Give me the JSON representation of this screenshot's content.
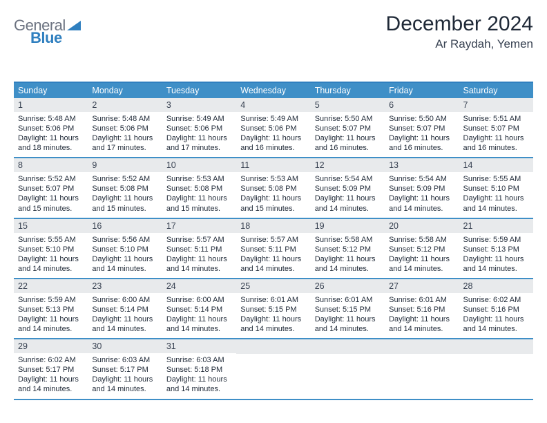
{
  "brand": {
    "part1": "General",
    "part2": "Blue"
  },
  "title": "December 2024",
  "location": "Ar Raydah, Yemen",
  "colors": {
    "header_bg": "#3f8fc7",
    "header_border": "#2f7fbf",
    "daynum_bg": "#e8eaec",
    "text": "#1f2937",
    "logo_gray": "#6b7280",
    "logo_blue": "#2f7fbf"
  },
  "daysOfWeek": [
    "Sunday",
    "Monday",
    "Tuesday",
    "Wednesday",
    "Thursday",
    "Friday",
    "Saturday"
  ],
  "weeks": [
    [
      {
        "n": "1",
        "sr": "5:48 AM",
        "ss": "5:06 PM",
        "dl": "11 hours and 18 minutes."
      },
      {
        "n": "2",
        "sr": "5:48 AM",
        "ss": "5:06 PM",
        "dl": "11 hours and 17 minutes."
      },
      {
        "n": "3",
        "sr": "5:49 AM",
        "ss": "5:06 PM",
        "dl": "11 hours and 17 minutes."
      },
      {
        "n": "4",
        "sr": "5:49 AM",
        "ss": "5:06 PM",
        "dl": "11 hours and 16 minutes."
      },
      {
        "n": "5",
        "sr": "5:50 AM",
        "ss": "5:07 PM",
        "dl": "11 hours and 16 minutes."
      },
      {
        "n": "6",
        "sr": "5:50 AM",
        "ss": "5:07 PM",
        "dl": "11 hours and 16 minutes."
      },
      {
        "n": "7",
        "sr": "5:51 AM",
        "ss": "5:07 PM",
        "dl": "11 hours and 16 minutes."
      }
    ],
    [
      {
        "n": "8",
        "sr": "5:52 AM",
        "ss": "5:07 PM",
        "dl": "11 hours and 15 minutes."
      },
      {
        "n": "9",
        "sr": "5:52 AM",
        "ss": "5:08 PM",
        "dl": "11 hours and 15 minutes."
      },
      {
        "n": "10",
        "sr": "5:53 AM",
        "ss": "5:08 PM",
        "dl": "11 hours and 15 minutes."
      },
      {
        "n": "11",
        "sr": "5:53 AM",
        "ss": "5:08 PM",
        "dl": "11 hours and 15 minutes."
      },
      {
        "n": "12",
        "sr": "5:54 AM",
        "ss": "5:09 PM",
        "dl": "11 hours and 14 minutes."
      },
      {
        "n": "13",
        "sr": "5:54 AM",
        "ss": "5:09 PM",
        "dl": "11 hours and 14 minutes."
      },
      {
        "n": "14",
        "sr": "5:55 AM",
        "ss": "5:10 PM",
        "dl": "11 hours and 14 minutes."
      }
    ],
    [
      {
        "n": "15",
        "sr": "5:55 AM",
        "ss": "5:10 PM",
        "dl": "11 hours and 14 minutes."
      },
      {
        "n": "16",
        "sr": "5:56 AM",
        "ss": "5:10 PM",
        "dl": "11 hours and 14 minutes."
      },
      {
        "n": "17",
        "sr": "5:57 AM",
        "ss": "5:11 PM",
        "dl": "11 hours and 14 minutes."
      },
      {
        "n": "18",
        "sr": "5:57 AM",
        "ss": "5:11 PM",
        "dl": "11 hours and 14 minutes."
      },
      {
        "n": "19",
        "sr": "5:58 AM",
        "ss": "5:12 PM",
        "dl": "11 hours and 14 minutes."
      },
      {
        "n": "20",
        "sr": "5:58 AM",
        "ss": "5:12 PM",
        "dl": "11 hours and 14 minutes."
      },
      {
        "n": "21",
        "sr": "5:59 AM",
        "ss": "5:13 PM",
        "dl": "11 hours and 14 minutes."
      }
    ],
    [
      {
        "n": "22",
        "sr": "5:59 AM",
        "ss": "5:13 PM",
        "dl": "11 hours and 14 minutes."
      },
      {
        "n": "23",
        "sr": "6:00 AM",
        "ss": "5:14 PM",
        "dl": "11 hours and 14 minutes."
      },
      {
        "n": "24",
        "sr": "6:00 AM",
        "ss": "5:14 PM",
        "dl": "11 hours and 14 minutes."
      },
      {
        "n": "25",
        "sr": "6:01 AM",
        "ss": "5:15 PM",
        "dl": "11 hours and 14 minutes."
      },
      {
        "n": "26",
        "sr": "6:01 AM",
        "ss": "5:15 PM",
        "dl": "11 hours and 14 minutes."
      },
      {
        "n": "27",
        "sr": "6:01 AM",
        "ss": "5:16 PM",
        "dl": "11 hours and 14 minutes."
      },
      {
        "n": "28",
        "sr": "6:02 AM",
        "ss": "5:16 PM",
        "dl": "11 hours and 14 minutes."
      }
    ],
    [
      {
        "n": "29",
        "sr": "6:02 AM",
        "ss": "5:17 PM",
        "dl": "11 hours and 14 minutes."
      },
      {
        "n": "30",
        "sr": "6:03 AM",
        "ss": "5:17 PM",
        "dl": "11 hours and 14 minutes."
      },
      {
        "n": "31",
        "sr": "6:03 AM",
        "ss": "5:18 PM",
        "dl": "11 hours and 14 minutes."
      },
      null,
      null,
      null,
      null
    ]
  ],
  "labels": {
    "sunrise": "Sunrise:",
    "sunset": "Sunset:",
    "daylight": "Daylight:"
  }
}
